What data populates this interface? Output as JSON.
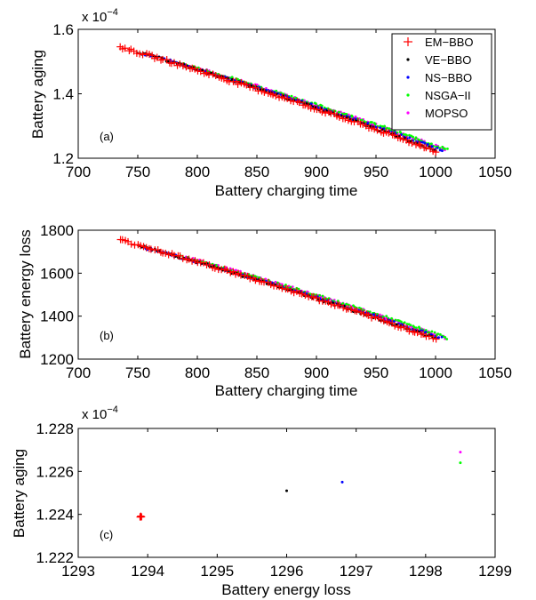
{
  "chart_data": [
    {
      "type": "scatter",
      "panel_label": "(a)",
      "xlabel": "Battery charging time",
      "ylabel": "Battery aging",
      "exponent_label": "x 10",
      "exponent_power": "−4",
      "xlim": [
        700,
        1050
      ],
      "ylim": [
        1.2,
        1.6
      ],
      "xticks": [
        "700",
        "750",
        "800",
        "850",
        "900",
        "950",
        "1000",
        "1050"
      ],
      "yticks": [
        "1.2",
        "1.4",
        "1.6"
      ],
      "legend_position": "top-right",
      "legend": [
        {
          "label": "EM−BBO",
          "marker": "plus",
          "color": "#ff0000"
        },
        {
          "label": "VE−BBO",
          "marker": "dot",
          "color": "#000000"
        },
        {
          "label": "NS−BBO",
          "marker": "dot",
          "color": "#0000ff"
        },
        {
          "label": "NSGA−II",
          "marker": "dot",
          "color": "#00ff00"
        },
        {
          "label": "MOPSO",
          "marker": "dot",
          "color": "#ff00ff"
        }
      ],
      "series": [
        {
          "name": "EM−BBO",
          "marker": "plus",
          "color": "#ff0000",
          "x_range": [
            735,
            1000
          ],
          "y_start": 1.545,
          "y_end": 1.222
        },
        {
          "name": "VE−BBO",
          "marker": "dot",
          "color": "#000000",
          "x_range": [
            750,
            1000
          ],
          "y_start": 1.53,
          "y_end": 1.225
        },
        {
          "name": "NS−BBO",
          "marker": "dot",
          "color": "#0000ff",
          "x_range": [
            755,
            1005
          ],
          "y_start": 1.525,
          "y_end": 1.225
        },
        {
          "name": "NSGA−II",
          "marker": "dot",
          "color": "#00ff00",
          "x_range": [
            785,
            1010
          ],
          "y_start": 1.495,
          "y_end": 1.226
        },
        {
          "name": "MOPSO",
          "marker": "dot",
          "color": "#ff00ff",
          "x_range": [
            790,
            1008
          ],
          "y_start": 1.49,
          "y_end": 1.227
        }
      ]
    },
    {
      "type": "scatter",
      "panel_label": "(b)",
      "xlabel": "Battery charging time",
      "ylabel": "Battery energy loss",
      "xlim": [
        700,
        1050
      ],
      "ylim": [
        1200,
        1800
      ],
      "xticks": [
        "700",
        "750",
        "800",
        "850",
        "900",
        "950",
        "1000",
        "1050"
      ],
      "yticks": [
        "1200",
        "1400",
        "1600",
        "1800"
      ],
      "series": [
        {
          "name": "EM−BBO",
          "marker": "plus",
          "color": "#ff0000",
          "x_range": [
            735,
            1000
          ],
          "y_start": 1755,
          "y_end": 1294
        },
        {
          "name": "VE−BBO",
          "marker": "dot",
          "color": "#000000",
          "x_range": [
            750,
            1000
          ],
          "y_start": 1730,
          "y_end": 1296
        },
        {
          "name": "NS−BBO",
          "marker": "dot",
          "color": "#0000ff",
          "x_range": [
            755,
            1005
          ],
          "y_start": 1720,
          "y_end": 1297
        },
        {
          "name": "NSGA−II",
          "marker": "dot",
          "color": "#00ff00",
          "x_range": [
            785,
            1010
          ],
          "y_start": 1680,
          "y_end": 1298.5
        },
        {
          "name": "MOPSO",
          "marker": "dot",
          "color": "#ff00ff",
          "x_range": [
            790,
            1008
          ],
          "y_start": 1675,
          "y_end": 1298.5
        }
      ]
    },
    {
      "type": "scatter",
      "panel_label": "(c)",
      "xlabel": "Battery energy loss",
      "ylabel": "Battery aging",
      "exponent_label": "x 10",
      "exponent_power": "−4",
      "xlim": [
        1293,
        1299
      ],
      "ylim": [
        1.222,
        1.228
      ],
      "xticks": [
        "1293",
        "1294",
        "1295",
        "1296",
        "1297",
        "1298",
        "1299"
      ],
      "yticks": [
        "1.222",
        "1.224",
        "1.226",
        "1.228"
      ],
      "points": [
        {
          "name": "EM−BBO",
          "marker": "plus",
          "color": "#ff0000",
          "x": 1293.9,
          "y": 1.2239,
          "cluster": true
        },
        {
          "name": "VE−BBO",
          "marker": "dot",
          "color": "#000000",
          "x": 1296.0,
          "y": 1.2251
        },
        {
          "name": "NS−BBO",
          "marker": "dot",
          "color": "#0000ff",
          "x": 1296.8,
          "y": 1.2255
        },
        {
          "name": "NSGA−II",
          "marker": "dot",
          "color": "#00ff00",
          "x": 1298.5,
          "y": 1.2264
        },
        {
          "name": "MOPSO",
          "marker": "dot",
          "color": "#ff00ff",
          "x": 1298.5,
          "y": 1.2269
        }
      ]
    }
  ]
}
